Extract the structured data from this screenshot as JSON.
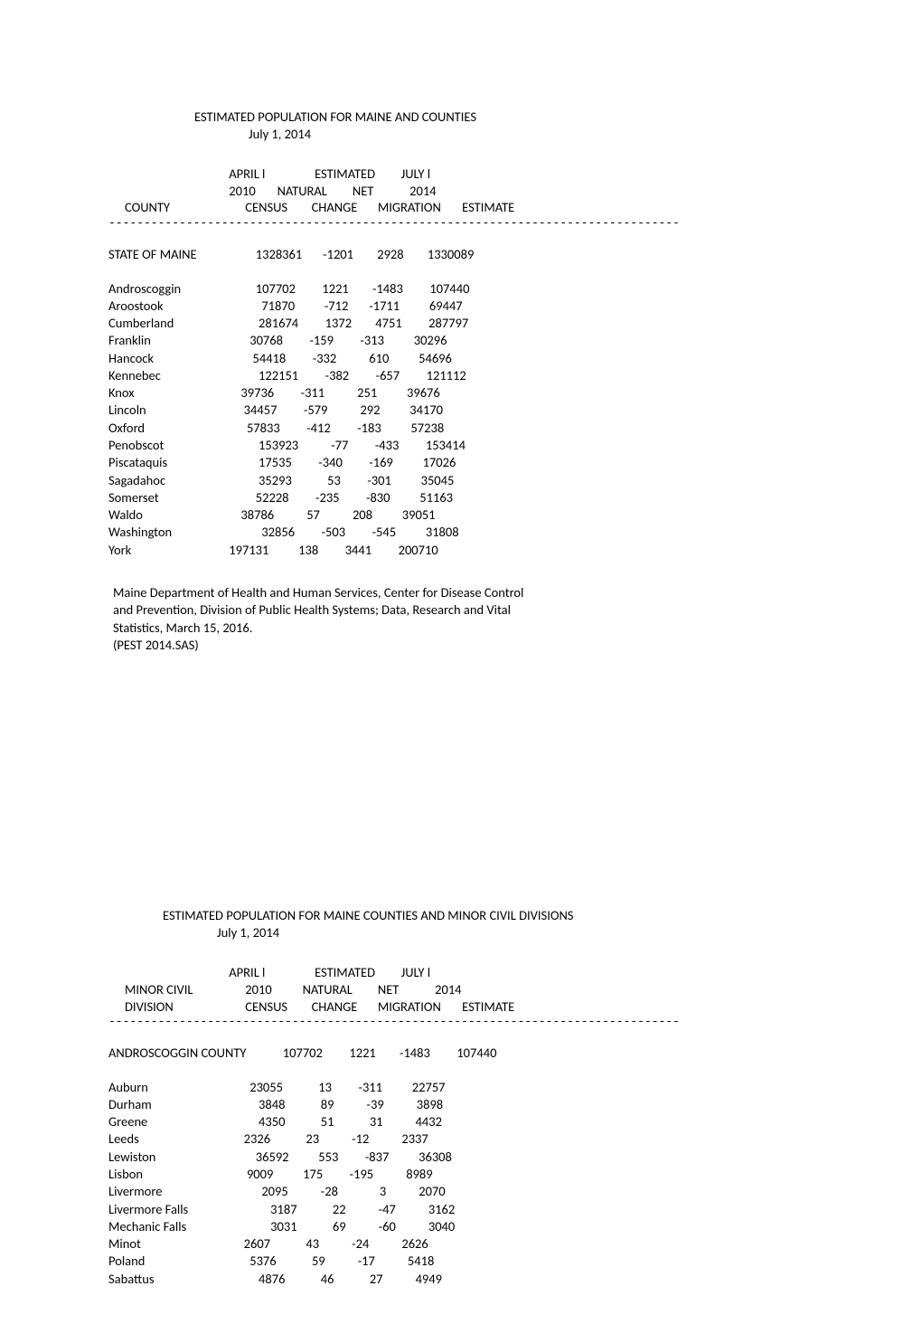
{
  "font": {
    "family": "Calibri",
    "size_pt": 11,
    "color": "#000000"
  },
  "background_color": "#ffffff",
  "section1": {
    "title": "ESTIMATED POPULATION FOR MAINE AND COUNTIES",
    "date": "July 1, 2014",
    "header": {
      "r1": {
        "c1": "APRIL l",
        "c2": "ESTIMATED",
        "c3": "JULY l"
      },
      "r2": {
        "c1": "2010",
        "c2": "NATURAL",
        "c3": "NET",
        "c4": "2014"
      },
      "r3": {
        "c0": "COUNTY",
        "c1": "CENSUS",
        "c2": "CHANGE",
        "c3": "MIGRATION",
        "c4": "ESTIMATE"
      }
    },
    "divider": "---------------------------------------------------------------------------------",
    "state_row": {
      "label": "STATE OF MAINE",
      "cols": "          1328361       -1201        2928        1330089"
    },
    "rows": [
      {
        "label": "Androscoggin",
        "cols": "          107702         1221        -1483         107440"
      },
      {
        "label": "Aroostook",
        "cols": "            71870          -712       -1711          69447"
      },
      {
        "label": "Cumberland",
        "cols": "           281674         1372        4751         287797"
      },
      {
        "label": "Franklin",
        "cols": "        30768         -159         -313          30296"
      },
      {
        "label": "Hancock",
        "cols": "         54418         -332           610          54696"
      },
      {
        "label": "Kennebec",
        "cols": "           122151         -382         -657         121112"
      },
      {
        "label": "Knox",
        "cols": "     39736         -311           251          39676"
      },
      {
        "label": "Lincoln",
        "cols": "      34457         -579           292          34170"
      },
      {
        "label": "Oxford",
        "cols": "       57833         -412         -183          57238"
      },
      {
        "label": "Penobscot",
        "cols": "           153923           -77         -433         153414"
      },
      {
        "label": "Piscataquis",
        "cols": "           17535         -340         -169          17026"
      },
      {
        "label": "Sagadahoc",
        "cols": "           35293            53         -301          35045"
      },
      {
        "label": "Somerset",
        "cols": "          52228         -235         -830          51163"
      },
      {
        "label": "Waldo",
        "cols": "     38786           57           208          39051"
      },
      {
        "label": "Washington",
        "cols": "            32856         -503         -545          31808"
      },
      {
        "label": "York",
        "cols": " 197131          138         3441         200710"
      }
    ],
    "note": {
      "l1": "Maine Department of Health and Human Services, Center for Disease Control",
      "l2": "and Prevention, Division of Public Health Systems; Data, Research and Vital",
      "l3": "Statistics, March 15, 2016.",
      "l4": "(PEST 2014.SAS)"
    }
  },
  "section2": {
    "title": "ESTIMATED POPULATION FOR MAINE COUNTIES AND MINOR CIVIL DIVISIONS",
    "date": "July 1, 2014",
    "header": {
      "r1": {
        "c1": "APRIL l",
        "c2": "ESTIMATED",
        "c3": "JULY l"
      },
      "r2": {
        "c0": "MINOR CIVIL",
        "c1": "2010",
        "c2": "NATURAL",
        "c3": "NET",
        "c4": "2014"
      },
      "r3": {
        "c0": "DIVISION",
        "c1": "CENSUS",
        "c2": "CHANGE",
        "c3": "MIGRATION",
        "c4": "ESTIMATE"
      }
    },
    "divider": "---------------------------------------------------------------------------------",
    "county_row": {
      "label": "ANDROSCOGGIN COUNTY",
      "cols": "          107702         1221        -1483         107440"
    },
    "rows": [
      {
        "label": "Auburn",
        "cols": "        23055            13         -311          22757"
      },
      {
        "label": "Durham",
        "cols": "           3848            89           -39           3898"
      },
      {
        "label": "Greene",
        "cols": "           4350            51            31           4432"
      },
      {
        "label": "Leeds",
        "cols": "      2326            23           -12           2337"
      },
      {
        "label": "Lewiston",
        "cols": "          36592          553         -837          36308"
      },
      {
        "label": "Lisbon",
        "cols": "       9009          175         -195           8989"
      },
      {
        "label": "Livermore",
        "cols": "            2095           -28              3           2070"
      },
      {
        "label": "Livermore Falls",
        "cols": "               3187            22           -47           3162"
      },
      {
        "label": "Mechanic Falls",
        "cols": "               3031            69           -60           3040"
      },
      {
        "label": "Minot",
        "cols": "      2607            43           -24           2626"
      },
      {
        "label": "Poland",
        "cols": "        5376            59           -17           5418"
      },
      {
        "label": "Sabattus",
        "cols": "           4876            46            27           4949"
      }
    ]
  }
}
